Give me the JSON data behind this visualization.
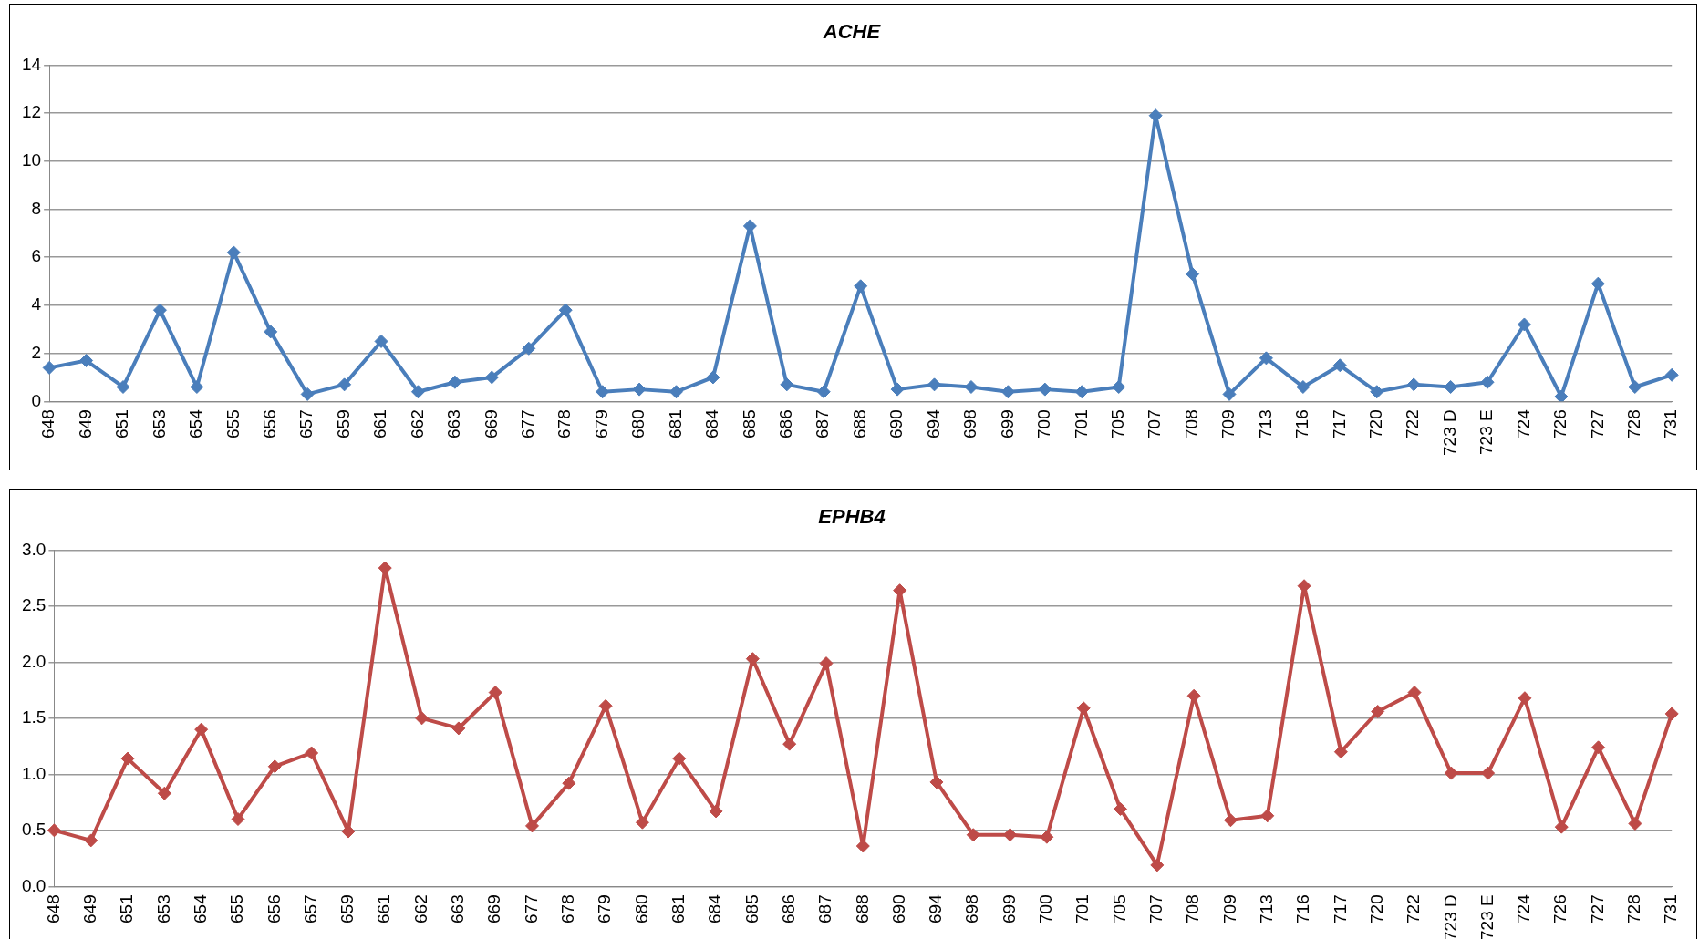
{
  "chart_data": [
    {
      "type": "line",
      "title": "ACHE",
      "categories": [
        "648",
        "649",
        "651",
        "653",
        "654",
        "655",
        "656",
        "657",
        "659",
        "661",
        "662",
        "663",
        "669",
        "677",
        "678",
        "679",
        "680",
        "681",
        "684",
        "685",
        "686",
        "687",
        "688",
        "690",
        "694",
        "698",
        "699",
        "700",
        "701",
        "705",
        "707",
        "708",
        "709",
        "713",
        "716",
        "717",
        "720",
        "722",
        "723 D",
        "723 E",
        "724",
        "726",
        "727",
        "728",
        "731"
      ],
      "series": [
        {
          "color": "#4a7ebb",
          "values": [
            1.4,
            1.7,
            0.6,
            3.8,
            0.6,
            6.2,
            2.9,
            0.3,
            0.7,
            2.5,
            0.4,
            0.8,
            1.0,
            2.2,
            3.8,
            0.4,
            0.5,
            0.4,
            1.0,
            7.3,
            0.7,
            0.4,
            4.8,
            0.5,
            0.7,
            0.6,
            0.4,
            0.5,
            0.4,
            0.6,
            11.9,
            5.3,
            0.3,
            1.8,
            0.6,
            1.5,
            0.4,
            0.7,
            0.6,
            0.8,
            3.2,
            0.2,
            4.9,
            0.6,
            1.1
          ]
        }
      ],
      "ylim": [
        0,
        14
      ],
      "yticks": [
        0,
        2,
        4,
        6,
        8,
        10,
        12,
        14
      ],
      "grid": "y",
      "marker": "diamond",
      "line_style": "solid"
    },
    {
      "type": "line",
      "title": "EPHB4",
      "categories": [
        "648",
        "649",
        "651",
        "653",
        "654",
        "655",
        "656",
        "657",
        "659",
        "661",
        "662",
        "663",
        "669",
        "677",
        "678",
        "679",
        "680",
        "681",
        "684",
        "685",
        "686",
        "687",
        "688",
        "690",
        "694",
        "698",
        "699",
        "700",
        "701",
        "705",
        "707",
        "708",
        "709",
        "713",
        "716",
        "717",
        "720",
        "722",
        "723 D",
        "723 E",
        "724",
        "726",
        "727",
        "728",
        "731"
      ],
      "series": [
        {
          "color": "#be4b48",
          "values": [
            0.5,
            0.41,
            1.14,
            0.83,
            1.4,
            0.6,
            1.07,
            1.19,
            0.49,
            2.84,
            1.5,
            1.41,
            1.73,
            0.54,
            0.92,
            1.61,
            0.57,
            1.14,
            0.67,
            2.03,
            1.27,
            1.99,
            0.36,
            2.64,
            0.93,
            0.46,
            0.46,
            0.44,
            1.59,
            0.69,
            0.19,
            1.7,
            0.59,
            0.63,
            2.68,
            1.2,
            1.56,
            1.73,
            1.01,
            1.01,
            1.68,
            0.53,
            1.24,
            0.56,
            1.54
          ]
        }
      ],
      "ylim": [
        0,
        3
      ],
      "yticks": [
        {
          "value": 0,
          "label": "0.0"
        },
        {
          "value": 0.5,
          "label": "0.5"
        },
        {
          "value": 1,
          "label": "1.0"
        },
        {
          "value": 1.5,
          "label": "1.5"
        },
        {
          "value": 2,
          "label": "2.0"
        },
        {
          "value": 2.5,
          "label": "2.5"
        },
        {
          "value": 3,
          "label": "3.0"
        }
      ],
      "grid": "y",
      "marker": "diamond",
      "line_style": "solid"
    }
  ]
}
